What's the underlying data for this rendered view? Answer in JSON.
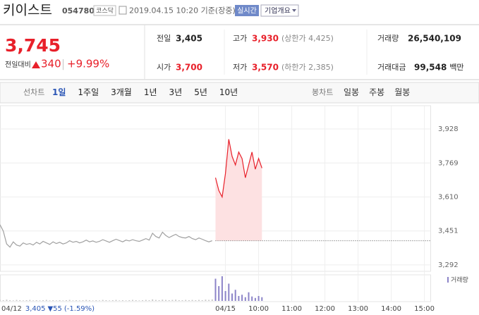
{
  "header": {
    "name": "키이스트",
    "code": "054780",
    "market": "코스닥",
    "timestamp": "2019.04.15 10:20 기준(장중)",
    "realtime": "실시간",
    "overview": "기업개요"
  },
  "price": {
    "current": "3,745",
    "change_label": "전일대비",
    "change": "340",
    "change_rate": "+9.99%"
  },
  "stats": [
    {
      "label": "전일",
      "value": "3,405"
    },
    {
      "label": "고가",
      "value": "3,930",
      "note": "(상한가 4,425)"
    },
    {
      "label": "거래량",
      "value": "26,540,109"
    },
    {
      "label": "시가",
      "value": "3,700"
    },
    {
      "label": "저가",
      "value": "3,570",
      "note": "(하한가 2,385)"
    },
    {
      "label": "거래대금",
      "value": "99,548",
      "note": "백만"
    }
  ],
  "tabs": {
    "line_label": "선차트",
    "periods": [
      "1일",
      "1주일",
      "3개월",
      "1년",
      "3년",
      "5년",
      "10년"
    ],
    "selected": "1일",
    "candle_label": "봉차트",
    "candle_periods": [
      "일봉",
      "주봉",
      "월봉"
    ]
  },
  "chart_data": {
    "type": "line",
    "categories": [
      null,
      null,
      null,
      null,
      null,
      null,
      null,
      null,
      null,
      null,
      null,
      null,
      null,
      null,
      null,
      null,
      null,
      null,
      null,
      null,
      null,
      null,
      null,
      null,
      null,
      null,
      null,
      null,
      null,
      null,
      null,
      null,
      null,
      null,
      null,
      null,
      null,
      null,
      null,
      null,
      null,
      null,
      null,
      null,
      null,
      null,
      null,
      null,
      null,
      null,
      null,
      null,
      null,
      null,
      null,
      null,
      null,
      null,
      null,
      null,
      null,
      null,
      null,
      null,
      null,
      null,
      null,
      null,
      "04/15",
      null,
      null,
      null,
      null,
      null,
      null,
      null,
      null,
      null,
      "10:00",
      null,
      null,
      null,
      null,
      null,
      null,
      null,
      null,
      null,
      "11:00",
      null,
      null,
      null,
      null,
      null,
      null,
      null,
      null,
      null,
      "12:00",
      null,
      null,
      null,
      null,
      null,
      null,
      null,
      null,
      null,
      "13:00",
      null,
      null,
      null,
      null,
      null,
      null,
      null,
      null,
      null,
      "14:00",
      null,
      null,
      null,
      null,
      null,
      null,
      null,
      null,
      null,
      "15:00"
    ],
    "series": [
      {
        "name": "04/12",
        "color": "#a0a0a0",
        "values": [
          3480,
          3450,
          3390,
          3375,
          3400,
          3385,
          3380,
          3395,
          3388,
          3392,
          3385,
          3398,
          3390,
          3402,
          3395,
          3388,
          3400,
          3392,
          3398,
          3390,
          3395,
          3405,
          3398,
          3402,
          3395,
          3400,
          3408,
          3400,
          3404,
          3398,
          3402,
          3410,
          3404,
          3398,
          3405,
          3412,
          3406,
          3400,
          3408,
          3404,
          3410,
          3405,
          3402,
          3408,
          3415,
          3408,
          3440,
          3425,
          3418,
          3445,
          3430,
          3420,
          3428,
          3435,
          3425,
          3420,
          3418,
          3425,
          3415,
          3410,
          3418,
          3412,
          3405,
          3400,
          3405,
          null,
          null,
          null,
          null,
          null,
          null,
          null,
          null,
          null,
          null,
          null,
          null,
          null,
          null,
          null,
          null,
          null,
          null,
          null,
          null,
          null,
          null,
          null,
          null,
          null,
          null,
          null,
          null,
          null,
          null,
          null,
          null,
          null,
          null,
          null,
          null,
          null,
          null,
          null,
          null,
          null,
          null,
          null,
          null,
          null,
          null,
          null,
          null,
          null,
          null,
          null,
          null,
          null,
          null,
          null,
          null,
          null,
          null,
          null,
          null,
          null,
          null,
          null,
          null
        ]
      },
      {
        "name": "04/15",
        "color": "#e8202a",
        "area_color": "#fde1e2",
        "values": [
          null,
          null,
          null,
          null,
          null,
          null,
          null,
          null,
          null,
          null,
          null,
          null,
          null,
          null,
          null,
          null,
          null,
          null,
          null,
          null,
          null,
          null,
          null,
          null,
          null,
          null,
          null,
          null,
          null,
          null,
          null,
          null,
          null,
          null,
          null,
          null,
          null,
          null,
          null,
          null,
          null,
          null,
          null,
          null,
          null,
          null,
          null,
          null,
          null,
          null,
          null,
          null,
          null,
          null,
          null,
          null,
          null,
          null,
          null,
          null,
          null,
          null,
          null,
          null,
          null,
          3700,
          3640,
          3610,
          3720,
          3880,
          3800,
          3760,
          3820,
          3790,
          3700,
          3760,
          3820,
          3740,
          3790,
          3745,
          null,
          null,
          null,
          null,
          null,
          null,
          null,
          null,
          null,
          null,
          null,
          null,
          null,
          null,
          null,
          null,
          null,
          null,
          null,
          null,
          null,
          null,
          null,
          null,
          null,
          null,
          null,
          null,
          null,
          null,
          null,
          null,
          null,
          null,
          null,
          null,
          null,
          null,
          null,
          null,
          null,
          null,
          null,
          null,
          null,
          null,
          null,
          null,
          null
        ]
      }
    ],
    "baseline": 3405,
    "volume": {
      "name": "거래량",
      "color": "#8c84c8",
      "prev_color": "#c8c8c8",
      "vlim": [
        0,
        100
      ],
      "values": [
        4,
        3,
        5,
        3,
        2,
        4,
        3,
        2,
        3,
        4,
        2,
        3,
        2,
        3,
        4,
        2,
        3,
        2,
        3,
        2,
        3,
        4,
        2,
        3,
        2,
        3,
        4,
        3,
        2,
        3,
        2,
        4,
        3,
        2,
        3,
        4,
        2,
        3,
        2,
        3,
        4,
        3,
        2,
        3,
        4,
        3,
        6,
        4,
        3,
        5,
        4,
        3,
        4,
        5,
        3,
        3,
        4,
        3,
        4,
        3,
        4,
        3,
        5,
        4,
        6,
        90,
        60,
        100,
        40,
        70,
        30,
        45,
        20,
        25,
        15,
        35,
        18,
        12,
        20,
        15,
        null,
        null,
        null,
        null,
        null,
        null,
        null,
        null,
        null,
        null,
        null,
        null,
        null,
        null,
        null,
        null,
        null,
        null,
        null,
        null,
        null,
        null,
        null,
        null,
        null,
        null,
        null,
        null,
        null,
        null,
        null,
        null,
        null,
        null,
        null,
        null,
        null,
        null,
        null,
        null,
        null,
        null,
        null,
        null,
        null,
        null,
        null,
        null,
        null
      ]
    },
    "ylim": [
      3262,
      4037
    ],
    "yticks": [
      {
        "value": 3292,
        "label": "3,292"
      },
      {
        "value": 3451,
        "label": "3,451"
      },
      {
        "value": 3610,
        "label": "3,610"
      },
      {
        "value": 3769,
        "label": "3,769"
      },
      {
        "value": 3928,
        "label": "3,928"
      }
    ],
    "grid": true,
    "info": {
      "date": "04/12",
      "price": "3,405",
      "change": "▼55",
      "rate": "(-1.59%)"
    }
  }
}
